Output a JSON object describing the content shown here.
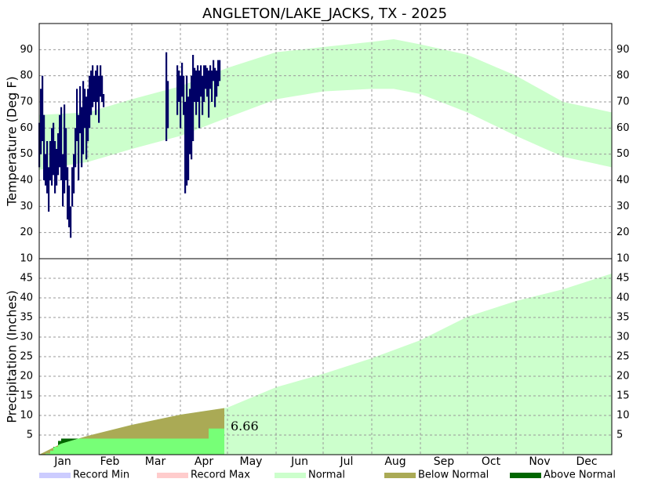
{
  "chart_data": [
    {
      "type": "temperature-range",
      "title": "ANGLETON/LAKE_JACKS, TX - 2025",
      "y_label": "Temperature (Deg F)",
      "xlim": [
        1,
        366
      ],
      "xgrid": [
        32,
        60,
        91,
        121,
        152,
        182,
        213,
        244,
        274,
        305,
        335
      ],
      "ylim": [
        10,
        100
      ],
      "yticks": [
        10,
        20,
        30,
        40,
        50,
        60,
        70,
        80,
        90
      ],
      "grid": true,
      "series": [
        {
          "name": "Normal",
          "color": "#ccffcc",
          "x": [
            1,
            32,
            60,
            91,
            121,
            152,
            182,
            213,
            227,
            244,
            274,
            305,
            335,
            366
          ],
          "low": [
            44,
            47,
            52,
            57,
            64,
            71,
            74,
            75,
            75,
            73,
            66,
            57,
            49,
            45
          ],
          "high": [
            65,
            66,
            71,
            76,
            83,
            89,
            91,
            93,
            94,
            92,
            88,
            80,
            70,
            66
          ]
        },
        {
          "color": "#000066",
          "x": [
            1,
            2,
            3,
            4,
            5,
            6,
            7,
            8,
            9,
            10,
            11,
            12,
            13,
            14,
            15,
            16,
            17,
            18,
            19,
            20,
            21,
            22,
            23,
            24,
            25,
            26,
            27,
            28,
            29,
            30,
            31,
            32,
            33,
            34,
            35,
            36,
            37,
            38,
            39,
            40,
            41,
            42,
            82,
            83,
            89,
            90,
            91,
            92,
            93,
            94,
            95,
            96,
            97,
            98,
            99,
            100,
            101,
            102,
            103,
            104,
            105,
            106,
            107,
            108,
            109,
            110,
            111,
            112,
            113,
            114,
            115,
            116
          ],
          "low": [
            45,
            50,
            55,
            40,
            38,
            35,
            28,
            40,
            38,
            42,
            35,
            38,
            42,
            45,
            40,
            30,
            35,
            40,
            25,
            22,
            18,
            30,
            35,
            45,
            55,
            40,
            58,
            45,
            50,
            60,
            48,
            55,
            60,
            65,
            68,
            70,
            65,
            70,
            62,
            72,
            70,
            68,
            55,
            60,
            65,
            70,
            60,
            72,
            65,
            35,
            38,
            40,
            50,
            48,
            55,
            70,
            65,
            70,
            60,
            72,
            65,
            70,
            75,
            72,
            64,
            75,
            70,
            78,
            68,
            72,
            76,
            78
          ],
          "high": [
            62,
            75,
            80,
            65,
            50,
            55,
            45,
            55,
            60,
            62,
            55,
            52,
            58,
            65,
            68,
            50,
            69,
            60,
            45,
            38,
            30,
            45,
            50,
            60,
            75,
            65,
            76,
            68,
            78,
            75,
            72,
            75,
            80,
            82,
            84,
            80,
            82,
            84,
            80,
            84,
            80,
            73,
            89,
            78,
            84,
            82,
            80,
            85,
            80,
            70,
            80,
            72,
            75,
            80,
            88,
            83,
            82,
            84,
            82,
            84,
            80,
            84,
            84,
            83,
            82,
            84,
            82,
            86,
            83,
            82,
            86,
            86
          ]
        }
      ]
    },
    {
      "type": "precipitation-cumulative",
      "y_label": "Precipitation (Inches)",
      "xlim": [
        1,
        366
      ],
      "xgrid": [
        32,
        60,
        91,
        121,
        152,
        182,
        213,
        244,
        274,
        305,
        335
      ],
      "xticks": [
        {
          "value": 16,
          "label": "Jan"
        },
        {
          "value": 46,
          "label": "Feb"
        },
        {
          "value": 75,
          "label": "Mar"
        },
        {
          "value": 106,
          "label": "Apr"
        },
        {
          "value": 136,
          "label": "May"
        },
        {
          "value": 167,
          "label": "Jun"
        },
        {
          "value": 197,
          "label": "Jul"
        },
        {
          "value": 228,
          "label": "Aug"
        },
        {
          "value": 259,
          "label": "Sep"
        },
        {
          "value": 289,
          "label": "Oct"
        },
        {
          "value": 320,
          "label": "Nov"
        },
        {
          "value": 350,
          "label": "Dec"
        }
      ],
      "ylim": [
        0,
        50
      ],
      "yticks": [
        5,
        10,
        15,
        20,
        25,
        30,
        35,
        40,
        45
      ],
      "grid": true,
      "series": [
        {
          "name": "Normal",
          "color": "#ccffcc",
          "x": [
            1,
            15,
            32,
            60,
            91,
            121,
            152,
            182,
            213,
            244,
            274,
            305,
            335,
            366
          ],
          "values": [
            0,
            2.8,
            4.8,
            7.6,
            10.2,
            12,
            17.2,
            20.6,
            24.6,
            29.2,
            35.2,
            39.2,
            42.2,
            46.2
          ]
        },
        {
          "color": "#77ff77",
          "x": [
            1,
            5,
            8,
            10,
            13,
            15,
            109,
            118
          ],
          "values": [
            0,
            0.3,
            1,
            2,
            3.5,
            4.1,
            6.66,
            6.66
          ]
        }
      ],
      "legend": [
        {
          "name": "Record Min",
          "color": "#ccccff"
        },
        {
          "name": "Record Max",
          "color": "#ffcccc"
        },
        {
          "name": "Normal",
          "color": "#ccffcc"
        },
        {
          "name": "Below Normal",
          "color": "#aaaa55"
        },
        {
          "name": "Above Normal",
          "color": "#006600"
        }
      ]
    }
  ]
}
